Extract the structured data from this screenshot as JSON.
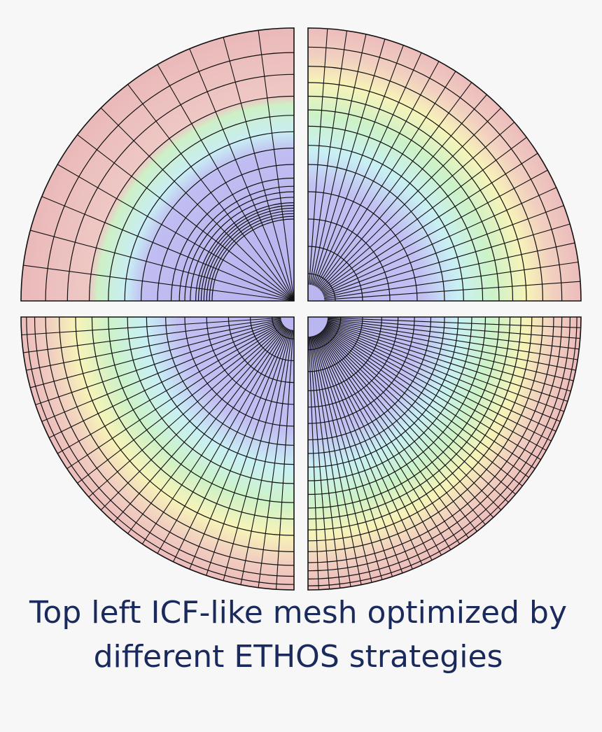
{
  "caption": {
    "lines": [
      "Top left ICF-like mesh optimized by",
      "different ETHOS strategies"
    ]
  }
}
